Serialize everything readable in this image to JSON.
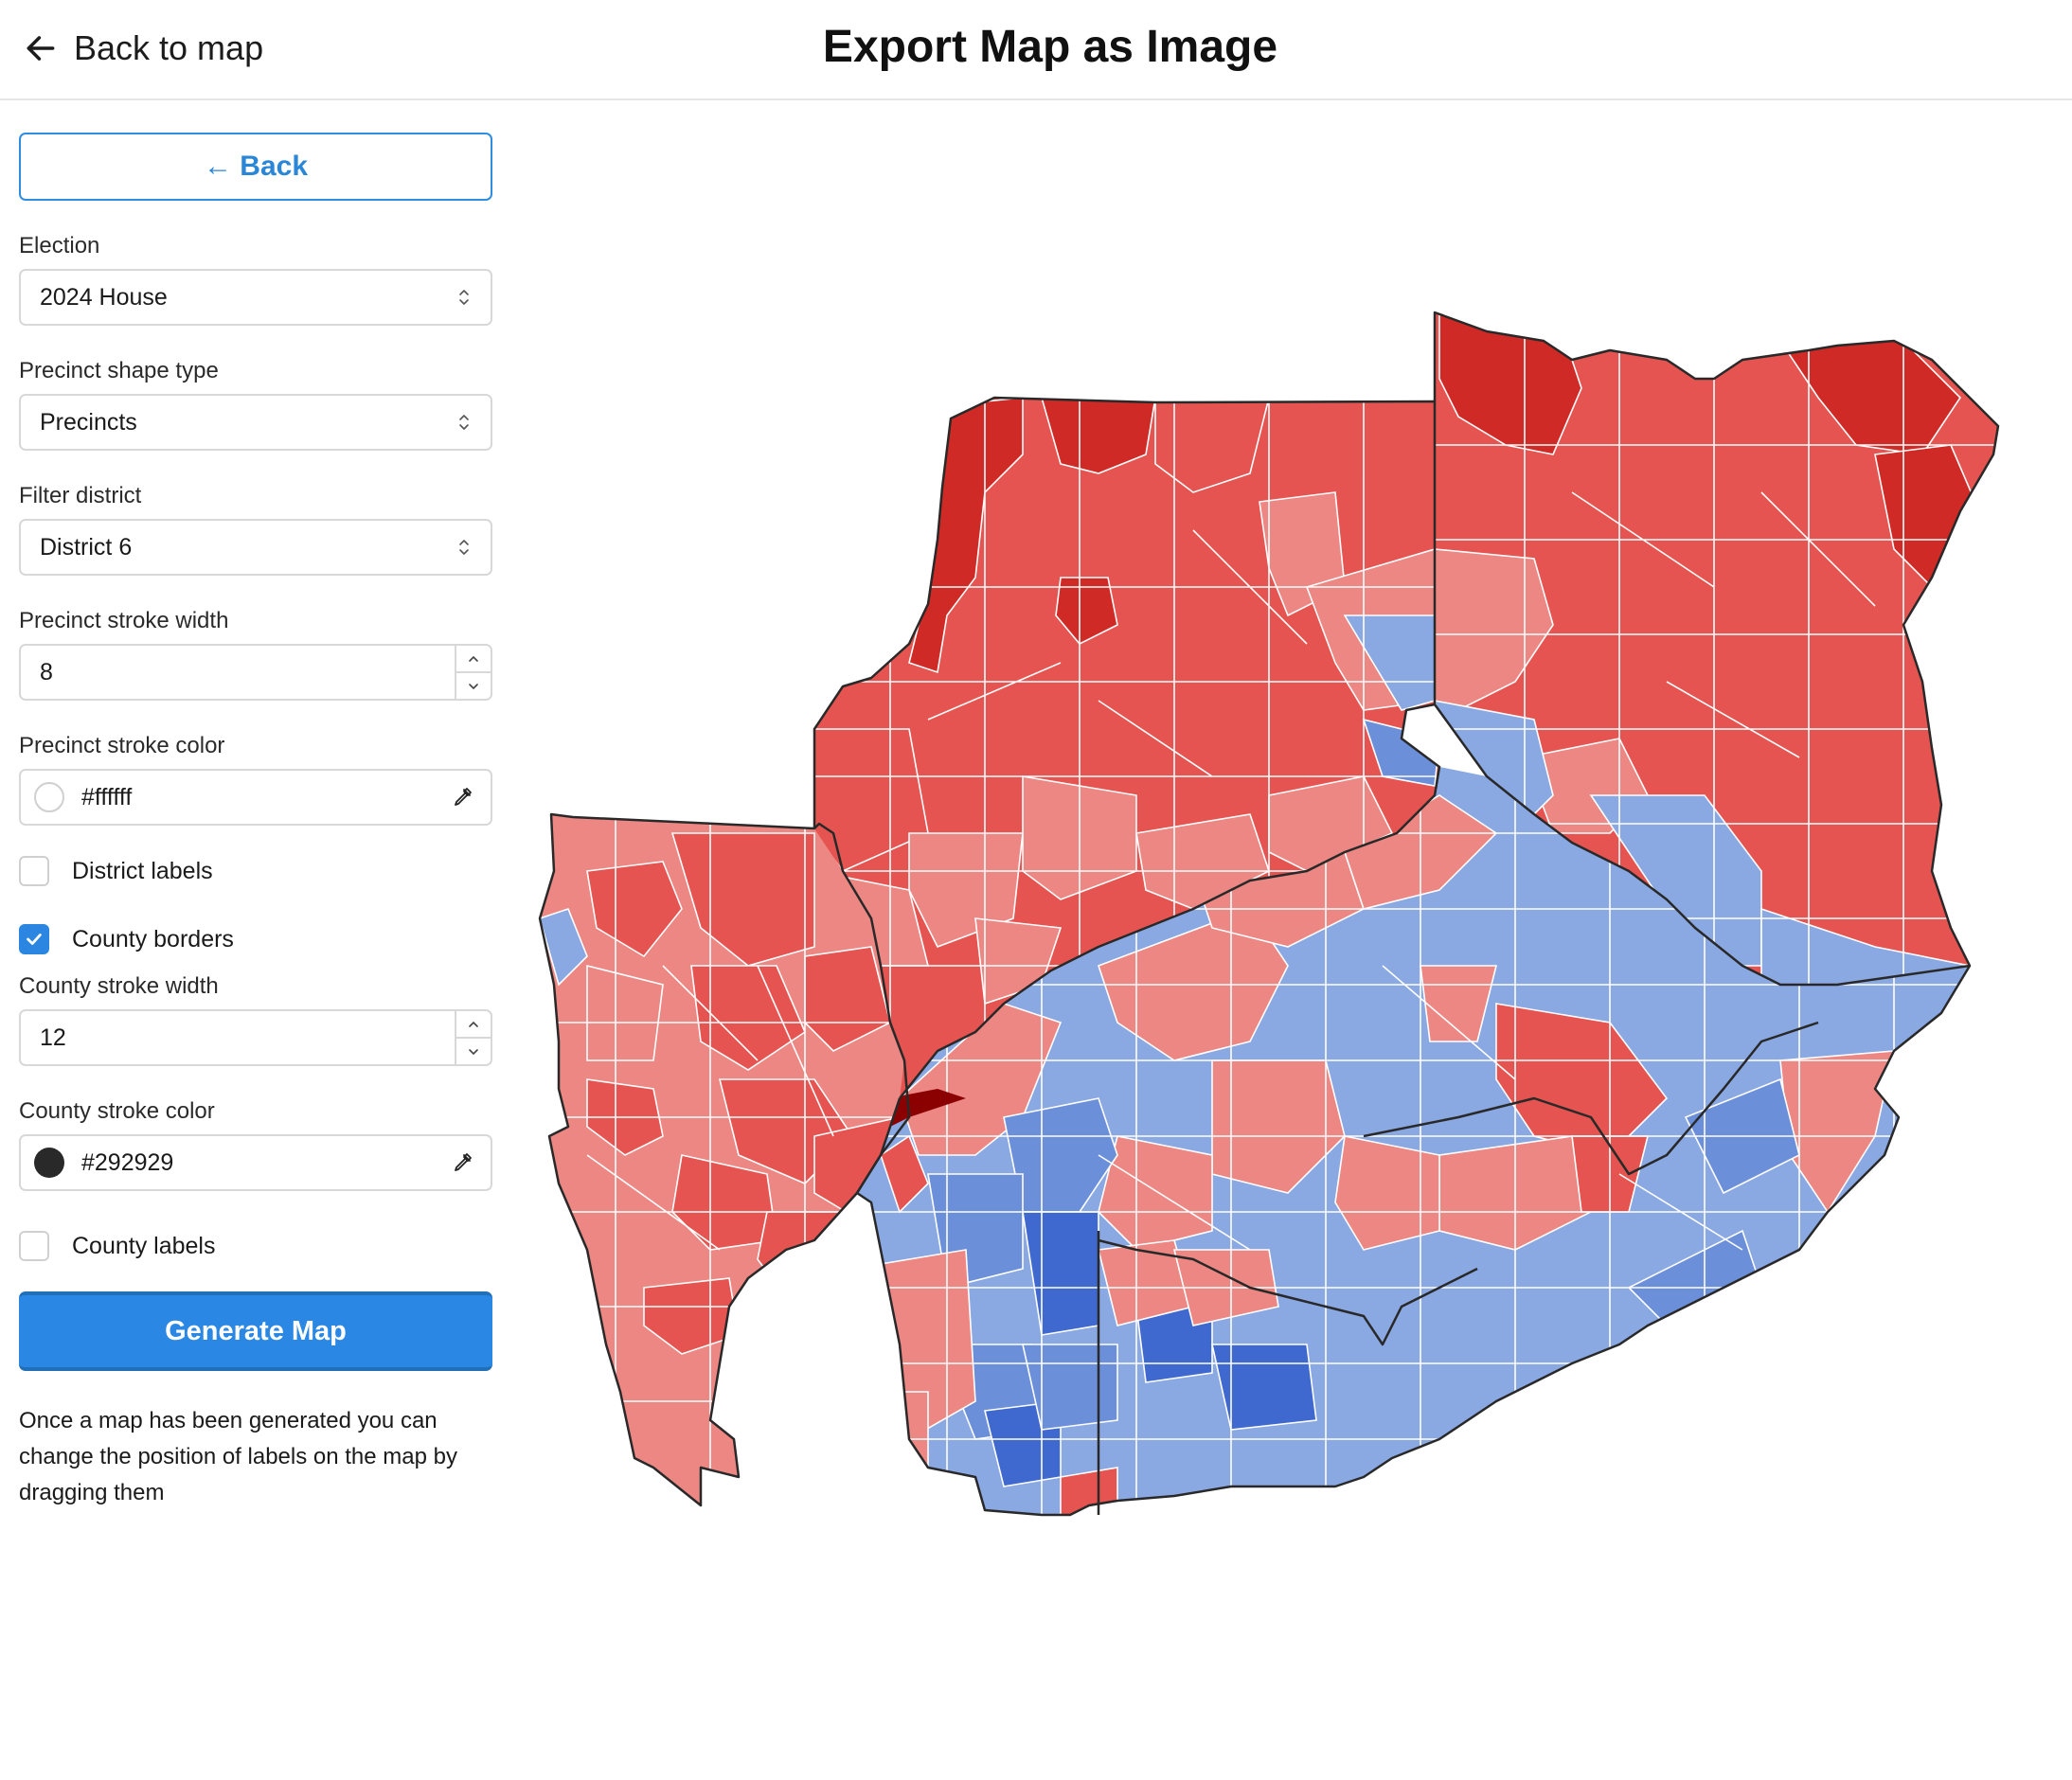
{
  "header": {
    "back_link_label": "Back to map",
    "title": "Export Map as Image"
  },
  "sidebar": {
    "back_button_label": "← Back",
    "election": {
      "label": "Election",
      "value": "2024 House"
    },
    "shape_type": {
      "label": "Precinct shape type",
      "value": "Precincts"
    },
    "district": {
      "label": "Filter district",
      "value": "District 6"
    },
    "precinct_stroke_width": {
      "label": "Precinct stroke width",
      "value": "8"
    },
    "precinct_stroke_color": {
      "label": "Precinct stroke color",
      "value": "#ffffff"
    },
    "district_labels": {
      "label": "District labels",
      "checked": false
    },
    "county_borders": {
      "label": "County borders",
      "checked": true
    },
    "county_stroke_width": {
      "label": "County stroke width",
      "value": "12"
    },
    "county_stroke_color": {
      "label": "County stroke color",
      "value": "#292929"
    },
    "county_labels": {
      "label": "County labels",
      "checked": false
    },
    "generate_button_label": "Generate Map",
    "hint": "Once a map has been generated you can change the position of labels on the map by dragging them"
  },
  "map": {
    "colors": {
      "dark_red": "#d02a26",
      "red": "#e55450",
      "light_red": "#ec8783",
      "light_blue": "#8aa8e2",
      "blue": "#6c8fd9",
      "dark_blue": "#3f69cf",
      "maroon": "#8b0000",
      "county_border": "#292929",
      "precinct_border": "#ffffff"
    }
  }
}
